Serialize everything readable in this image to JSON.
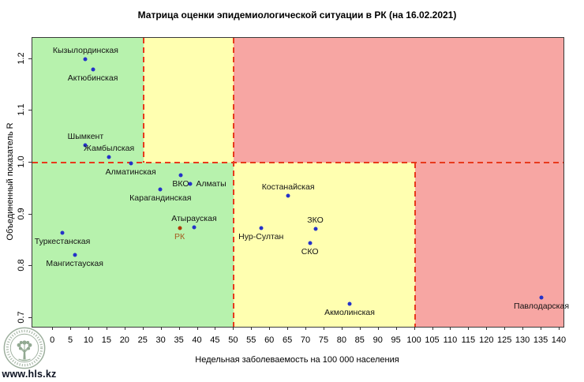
{
  "watermark": {
    "site_text": "www.hls.kz",
    "logo_icon": "hls-tree-logo"
  },
  "chart_data": {
    "type": "scatter",
    "title": "Матрица оценки эпидемиологической ситуации в РК (на 16.02.2021)",
    "xlabel": "Недельная заболеваемость на 100 000 населения",
    "ylabel": "Объединенный показатель R",
    "xlim": [
      -5.7,
      141.1
    ],
    "ylim": [
      0.683,
      1.241
    ],
    "x_ticks": [
      0,
      5,
      10,
      15,
      20,
      25,
      30,
      35,
      40,
      45,
      50,
      55,
      60,
      65,
      70,
      75,
      80,
      85,
      90,
      95,
      100,
      105,
      110,
      115,
      120,
      125,
      130,
      135,
      140
    ],
    "y_ticks": [
      0.7,
      0.8,
      0.9,
      1.0,
      1.1,
      1.2
    ],
    "grid": false,
    "legend": null,
    "point_color": "#2432c8",
    "label_color": "#141414",
    "dash_color": "#e8391b",
    "zones": [
      {
        "name": "green-upper",
        "x": [
          "min",
          25
        ],
        "r": [
          1.0,
          "max"
        ],
        "color": "#b7f2ad"
      },
      {
        "name": "yellow-upper",
        "x": [
          25,
          50
        ],
        "r": [
          1.0,
          "max"
        ],
        "color": "#ffffb0"
      },
      {
        "name": "red-upper",
        "x": [
          50,
          "max"
        ],
        "r": [
          1.0,
          "max"
        ],
        "color": "#f7a6a3"
      },
      {
        "name": "green-lower",
        "x": [
          "min",
          50
        ],
        "r": [
          "min",
          1.0
        ],
        "color": "#b7f2ad"
      },
      {
        "name": "yellow-lower",
        "x": [
          50,
          100
        ],
        "r": [
          "min",
          1.0
        ],
        "color": "#ffffb0"
      },
      {
        "name": "red-lower",
        "x": [
          100,
          "max"
        ],
        "r": [
          "min",
          1.0
        ],
        "color": "#f7a6a3"
      }
    ],
    "dashed_lines": [
      {
        "name": "r-threshold-line",
        "orientation": "horizontal",
        "r": 1.0,
        "x": [
          "min",
          "max"
        ]
      },
      {
        "name": "threshold-x25",
        "orientation": "vertical",
        "x": 25,
        "r": [
          1.0,
          "max"
        ]
      },
      {
        "name": "threshold-x50",
        "orientation": "vertical",
        "x": 50,
        "r": [
          "min",
          "max"
        ]
      },
      {
        "name": "threshold-x100",
        "orientation": "vertical",
        "x": 100,
        "r": [
          "min",
          1.0
        ]
      }
    ],
    "points": [
      {
        "name": "Кызылординская",
        "x": 9,
        "r": 1.2,
        "label_pos": "above"
      },
      {
        "name": "Актюбинская",
        "x": 11,
        "r": 1.18,
        "label_pos": "below"
      },
      {
        "name": "Шымкент",
        "x": 9,
        "r": 1.034,
        "label_pos": "above"
      },
      {
        "name": "Жамбылская",
        "x": 15.5,
        "r": 1.011,
        "label_pos": "above"
      },
      {
        "name": "Алматинская",
        "x": 21.5,
        "r": 0.998,
        "label_pos": "below"
      },
      {
        "name": "ВКО",
        "x": 35.3,
        "r": 0.976,
        "label_pos": "below"
      },
      {
        "name": "Алматы",
        "x": 38,
        "r": 0.959,
        "label_pos": "right"
      },
      {
        "name": "Карагандинская",
        "x": 29.7,
        "r": 0.948,
        "label_pos": "below"
      },
      {
        "name": "Костанайская",
        "x": 65,
        "r": 0.936,
        "label_pos": "above"
      },
      {
        "name": "Атырауская",
        "x": 39,
        "r": 0.875,
        "label_pos": "above"
      },
      {
        "name": "РК",
        "x": 35,
        "r": 0.874,
        "label_pos": "below",
        "point_color": "#ad3800",
        "text_color": "#a55a1e"
      },
      {
        "name": "Нур-Султан",
        "x": 57.5,
        "r": 0.874,
        "label_pos": "below"
      },
      {
        "name": "ЗКО",
        "x": 72.5,
        "r": 0.872,
        "label_pos": "above"
      },
      {
        "name": "СКО",
        "x": 71,
        "r": 0.845,
        "label_pos": "below"
      },
      {
        "name": "Туркестанская",
        "x": 2.6,
        "r": 0.865,
        "label_pos": "below"
      },
      {
        "name": "Мангистауская",
        "x": 6,
        "r": 0.822,
        "label_pos": "below"
      },
      {
        "name": "Акмолинская",
        "x": 82,
        "r": 0.727,
        "label_pos": "below"
      },
      {
        "name": "Павлодарская",
        "x": 135,
        "r": 0.74,
        "label_pos": "below"
      }
    ]
  }
}
